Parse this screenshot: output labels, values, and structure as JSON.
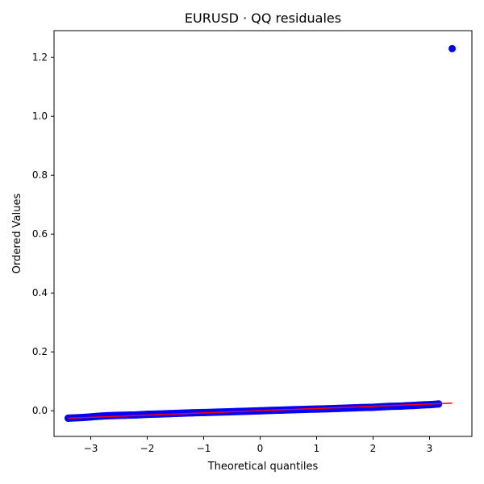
{
  "chart_data": {
    "type": "scatter",
    "title": "EURUSD · QQ residuales",
    "xlabel": "Theoretical quantiles",
    "ylabel": "Ordered Values",
    "xlim": [
      -3.65,
      3.75
    ],
    "ylim": [
      -0.087,
      1.291
    ],
    "xticks": [
      -3,
      -2,
      -1,
      0,
      1,
      2,
      3
    ],
    "xtick_labels": [
      "−3",
      "−2",
      "−1",
      "0",
      "1",
      "2",
      "3"
    ],
    "yticks": [
      0.0,
      0.2,
      0.4,
      0.6,
      0.8,
      1.0,
      1.2
    ],
    "ytick_labels": [
      "0.0",
      "0.2",
      "0.4",
      "0.6",
      "0.8",
      "1.0",
      "1.2"
    ],
    "grid": false,
    "legend": "none",
    "colors": {
      "points": "#0000ff",
      "fit_line": "#ff0000"
    },
    "series": [
      {
        "kind": "points",
        "x": [
          -3.4,
          -3.16,
          -3.01,
          -2.9,
          -2.8,
          -2.7,
          -2.6,
          -2.5,
          -2.4,
          -2.3,
          -2.2,
          -2.1,
          -2.0,
          -1.8,
          -1.6,
          -1.4,
          -1.2,
          -1.0,
          -0.8,
          -0.6,
          -0.4,
          -0.2,
          0.0,
          0.2,
          0.4,
          0.6,
          0.8,
          1.0,
          1.2,
          1.4,
          1.6,
          1.8,
          2.0,
          2.1,
          2.2,
          2.3,
          2.4,
          2.5,
          2.6,
          2.7,
          2.8,
          2.9,
          3.01,
          3.16,
          3.4
        ],
        "y": [
          -0.025,
          -0.023,
          -0.021,
          -0.019,
          -0.018,
          -0.017,
          -0.016,
          -0.0155,
          -0.015,
          -0.0145,
          -0.014,
          -0.013,
          -0.012,
          -0.011,
          -0.0095,
          -0.008,
          -0.007,
          -0.006,
          -0.0048,
          -0.0036,
          -0.0024,
          -0.0012,
          0.0,
          0.0012,
          0.0024,
          0.0036,
          0.0048,
          0.006,
          0.007,
          0.008,
          0.0095,
          0.011,
          0.012,
          0.013,
          0.014,
          0.015,
          0.0155,
          0.016,
          0.017,
          0.018,
          0.019,
          0.02,
          0.021,
          0.023,
          1.23
        ]
      },
      {
        "kind": "fit_line",
        "x": [
          -3.4,
          3.4
        ],
        "y": [
          -0.025,
          0.026
        ]
      }
    ]
  }
}
